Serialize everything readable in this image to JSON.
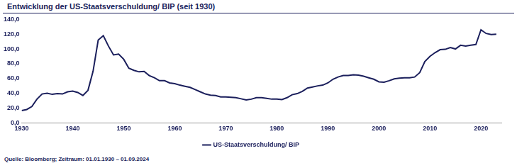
{
  "chart_data": {
    "type": "line",
    "title": "Entwicklung der US-Staatsverschuldung/ BIP (seit 1930)",
    "source": "Quelle: Bloomberg; Zeitraum: 01.01.1930 – 01.09.2024",
    "x": [
      1930,
      1931,
      1932,
      1933,
      1934,
      1935,
      1936,
      1937,
      1938,
      1939,
      1940,
      1941,
      1942,
      1943,
      1944,
      1945,
      1946,
      1947,
      1948,
      1949,
      1950,
      1951,
      1952,
      1953,
      1954,
      1955,
      1956,
      1957,
      1958,
      1959,
      1960,
      1961,
      1962,
      1963,
      1964,
      1965,
      1966,
      1967,
      1968,
      1969,
      1970,
      1971,
      1972,
      1973,
      1974,
      1975,
      1976,
      1977,
      1978,
      1979,
      1980,
      1981,
      1982,
      1983,
      1984,
      1985,
      1986,
      1987,
      1988,
      1989,
      1990,
      1991,
      1992,
      1993,
      1994,
      1995,
      1996,
      1997,
      1998,
      1999,
      2000,
      2001,
      2002,
      2003,
      2004,
      2005,
      2006,
      2007,
      2008,
      2009,
      2010,
      2011,
      2012,
      2013,
      2014,
      2015,
      2016,
      2017,
      2018,
      2019,
      2020,
      2021,
      2022,
      2023
    ],
    "series": [
      {
        "name": "US-Staatsverschuldung/ BIP",
        "color": "#1b1f5c",
        "values": [
          16.5,
          18,
          22,
          32,
          39,
          40,
          38.5,
          39.5,
          39,
          42,
          43,
          41,
          37,
          44,
          70,
          112,
          118,
          104,
          92,
          93,
          86,
          74,
          71,
          69,
          69.5,
          64,
          61,
          57,
          57,
          54,
          53,
          51,
          49.5,
          48,
          45,
          42,
          39,
          37.5,
          37,
          35,
          35,
          34.5,
          34,
          32.5,
          31,
          32,
          34,
          34,
          33,
          32,
          32,
          31.5,
          34,
          38,
          39.5,
          42.5,
          47,
          48.5,
          50,
          51,
          54,
          59,
          62,
          64,
          64,
          65,
          64.5,
          63,
          61,
          59,
          55.5,
          55,
          57,
          59.5,
          60.5,
          61,
          61,
          62,
          68,
          83,
          90,
          95,
          99,
          99.5,
          102,
          100,
          105,
          104,
          105,
          106,
          126,
          121,
          119.5,
          120
        ]
      }
    ],
    "xlim": [
      1930,
      2024
    ],
    "xticks": [
      1930,
      1940,
      1950,
      1960,
      1970,
      1980,
      1990,
      2000,
      2010,
      2020
    ],
    "ylim": [
      0,
      140
    ],
    "yticks": [
      {
        "value": 0,
        "label": "0,0"
      },
      {
        "value": 20,
        "label": "20,0"
      },
      {
        "value": 40,
        "label": "40,0"
      },
      {
        "value": 60,
        "label": "60,0"
      },
      {
        "value": 80,
        "label": "80,0"
      },
      {
        "value": 100,
        "label": "100,0"
      },
      {
        "value": 120,
        "label": "120,0"
      },
      {
        "value": 140,
        "label": "140,0"
      }
    ],
    "grid": false,
    "legend": "bottom"
  }
}
